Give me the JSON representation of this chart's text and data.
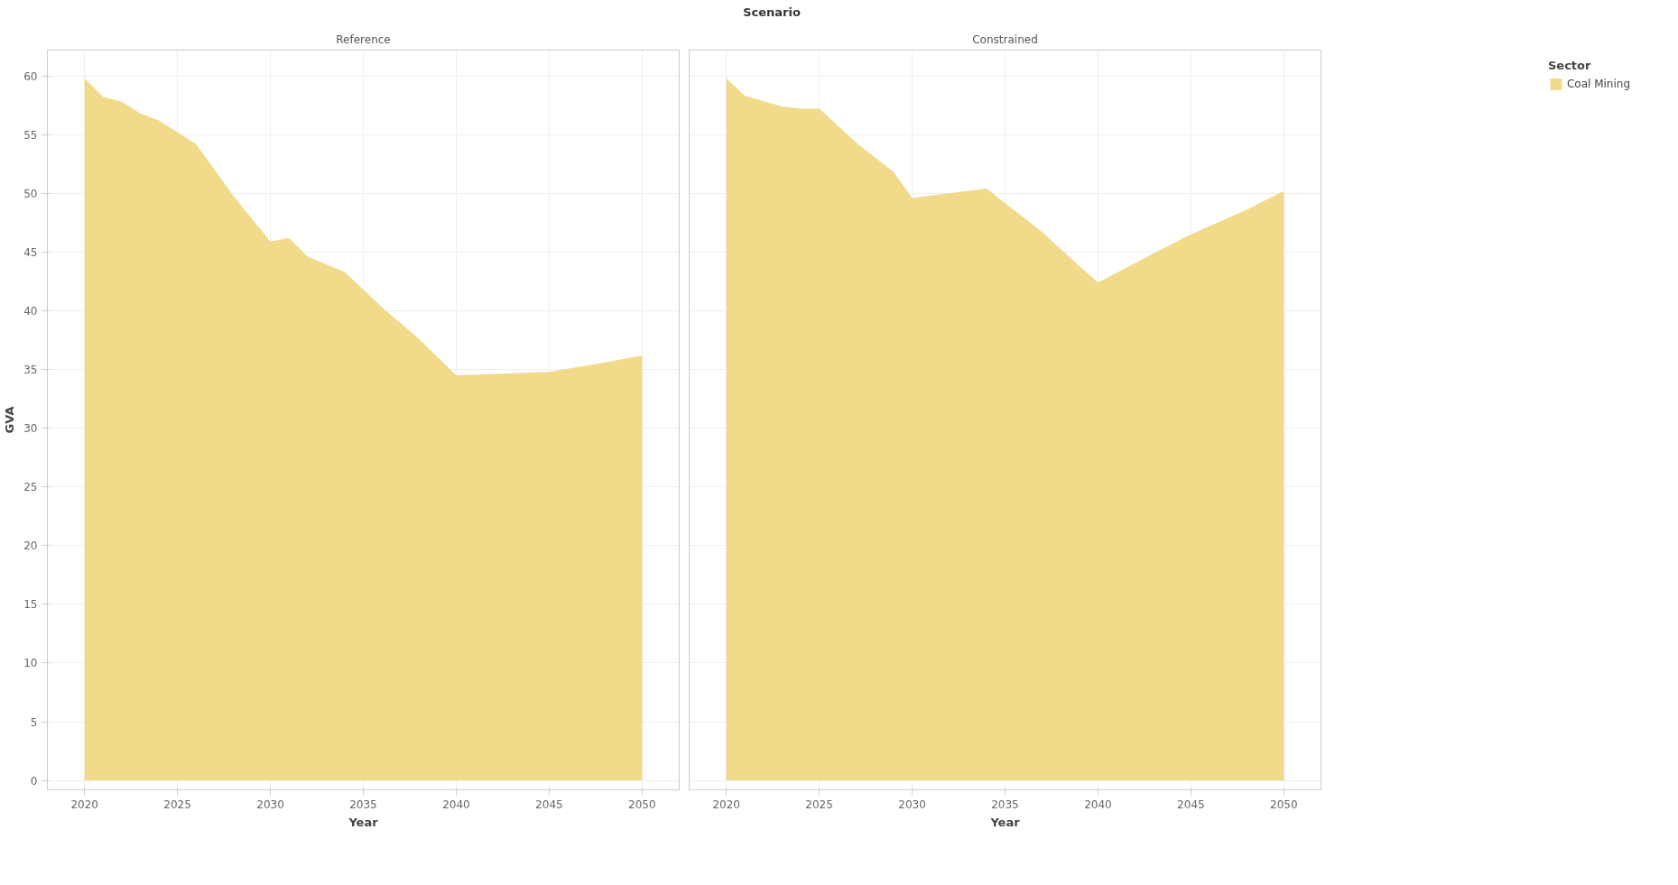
{
  "chart_data": [
    {
      "type": "area",
      "title": "Reference",
      "xlabel": "Year",
      "ylabel": "GVA",
      "annotations": [
        "Scenario"
      ],
      "x": [
        2020,
        2021,
        2022,
        2023,
        2024,
        2026,
        2028,
        2030,
        2031,
        2032,
        2034,
        2036,
        2038,
        2040,
        2045,
        2048,
        2050
      ],
      "series": [
        {
          "color": "#f1da8a",
          "values": [
            59.8,
            58.2,
            57.8,
            56.8,
            56.2,
            54.2,
            49.8,
            45.9,
            46.2,
            44.6,
            43.3,
            40.3,
            37.6,
            34.5,
            34.8,
            35.6,
            36.2
          ]
        }
      ],
      "xlim": [
        2018,
        2052
      ],
      "xticks": [
        2020,
        2025,
        2030,
        2035,
        2040,
        2045,
        2050
      ],
      "ylim": [
        -0.8,
        62.2
      ],
      "yticks": [
        0,
        5,
        10,
        15,
        20,
        25,
        30,
        35,
        40,
        45,
        50,
        55,
        60
      ],
      "grid": true
    },
    {
      "type": "area",
      "title": "Constrained",
      "xlabel": "Year",
      "legend_title": "Sector",
      "legend": "top right",
      "tick_labels": "x",
      "x": [
        2020,
        2021,
        2023,
        2024,
        2025,
        2027,
        2029,
        2030,
        2032,
        2034,
        2037,
        2039,
        2040,
        2043,
        2045,
        2048,
        2050
      ],
      "series": [
        {
          "name": "Coal Mining",
          "color": "#f1da8a",
          "values": [
            59.8,
            58.3,
            57.4,
            57.2,
            57.2,
            54.3,
            51.8,
            49.6,
            50.0,
            50.4,
            46.7,
            43.8,
            42.4,
            44.9,
            46.5,
            48.6,
            50.2
          ]
        }
      ],
      "xlim": [
        2018,
        2052
      ],
      "xticks": [
        2020,
        2025,
        2030,
        2035,
        2040,
        2045,
        2050
      ],
      "ylim": [
        -0.8,
        62.2
      ],
      "yticks": [
        0,
        5,
        10,
        15,
        20,
        25,
        30,
        35,
        40,
        45,
        50,
        55,
        60
      ],
      "grid": true
    }
  ]
}
